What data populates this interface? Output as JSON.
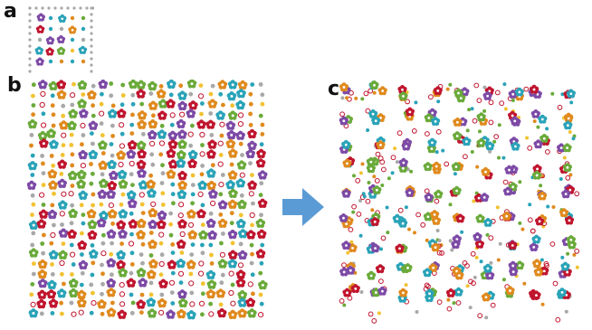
{
  "labels": {
    "a": "a",
    "b": "b",
    "c": "c"
  },
  "colors": {
    "red": "#c0152e",
    "purple": "#7d4aa6",
    "teal": "#2aa3b8",
    "green": "#6aaa3a",
    "orange": "#e08a1e",
    "yellow": "#f1c232",
    "gray": "#a8a8a8",
    "arrow": "#5b9bd5"
  },
  "icons": {
    "arrow": "right-arrow-icon"
  }
}
